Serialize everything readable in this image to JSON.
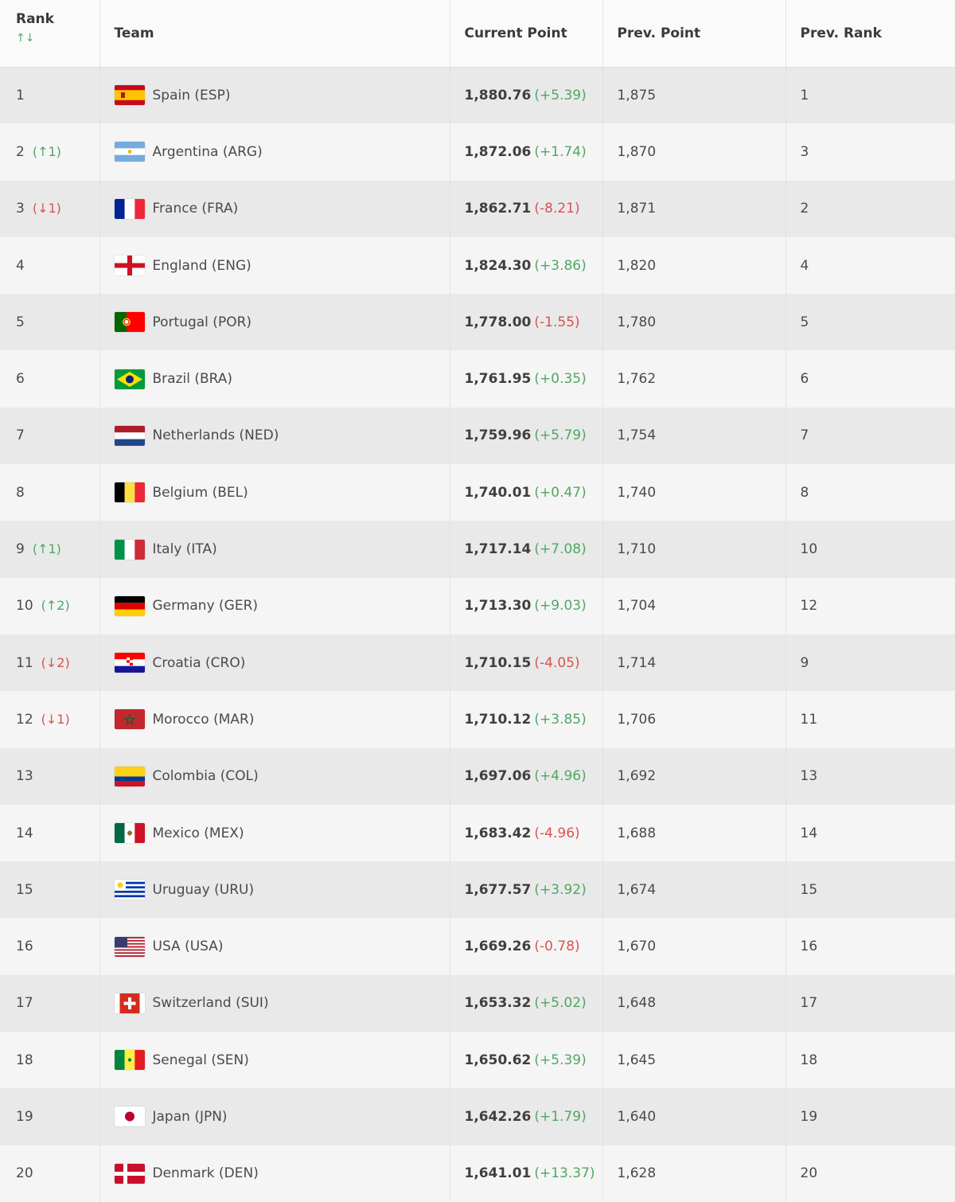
{
  "header": {
    "rank": "Rank",
    "sort_glyph": "↑↓",
    "team": "Team",
    "current_point": "Current Point",
    "prev_point": "Prev. Point",
    "prev_rank": "Prev. Rank"
  },
  "rows": [
    {
      "rank": "1",
      "move": "",
      "dir": "",
      "team": "Spain (ESP)",
      "flag": "esp",
      "current": "1,880.76",
      "delta": "(+5.39)",
      "sign": "pos",
      "prev_point": "1,875",
      "prev_rank": "1"
    },
    {
      "rank": "2",
      "move": "(↑1)",
      "dir": "up",
      "team": "Argentina (ARG)",
      "flag": "arg",
      "current": "1,872.06",
      "delta": "(+1.74)",
      "sign": "pos",
      "prev_point": "1,870",
      "prev_rank": "3"
    },
    {
      "rank": "3",
      "move": "(↓1)",
      "dir": "down",
      "team": "France (FRA)",
      "flag": "fra",
      "current": "1,862.71",
      "delta": "(-8.21)",
      "sign": "neg",
      "prev_point": "1,871",
      "prev_rank": "2"
    },
    {
      "rank": "4",
      "move": "",
      "dir": "",
      "team": "England (ENG)",
      "flag": "eng",
      "current": "1,824.30",
      "delta": "(+3.86)",
      "sign": "pos",
      "prev_point": "1,820",
      "prev_rank": "4"
    },
    {
      "rank": "5",
      "move": "",
      "dir": "",
      "team": "Portugal (POR)",
      "flag": "por",
      "current": "1,778.00",
      "delta": "(-1.55)",
      "sign": "neg",
      "prev_point": "1,780",
      "prev_rank": "5"
    },
    {
      "rank": "6",
      "move": "",
      "dir": "",
      "team": "Brazil (BRA)",
      "flag": "bra",
      "current": "1,761.95",
      "delta": "(+0.35)",
      "sign": "pos",
      "prev_point": "1,762",
      "prev_rank": "6"
    },
    {
      "rank": "7",
      "move": "",
      "dir": "",
      "team": "Netherlands (NED)",
      "flag": "ned",
      "current": "1,759.96",
      "delta": "(+5.79)",
      "sign": "pos",
      "prev_point": "1,754",
      "prev_rank": "7"
    },
    {
      "rank": "8",
      "move": "",
      "dir": "",
      "team": "Belgium (BEL)",
      "flag": "bel",
      "current": "1,740.01",
      "delta": "(+0.47)",
      "sign": "pos",
      "prev_point": "1,740",
      "prev_rank": "8"
    },
    {
      "rank": "9",
      "move": "(↑1)",
      "dir": "up",
      "team": "Italy (ITA)",
      "flag": "ita",
      "current": "1,717.14",
      "delta": "(+7.08)",
      "sign": "pos",
      "prev_point": "1,710",
      "prev_rank": "10"
    },
    {
      "rank": "10",
      "move": "(↑2)",
      "dir": "up",
      "team": "Germany (GER)",
      "flag": "ger",
      "current": "1,713.30",
      "delta": "(+9.03)",
      "sign": "pos",
      "prev_point": "1,704",
      "prev_rank": "12"
    },
    {
      "rank": "11",
      "move": "(↓2)",
      "dir": "down",
      "team": "Croatia (CRO)",
      "flag": "cro",
      "current": "1,710.15",
      "delta": "(-4.05)",
      "sign": "neg",
      "prev_point": "1,714",
      "prev_rank": "9"
    },
    {
      "rank": "12",
      "move": "(↓1)",
      "dir": "down",
      "team": "Morocco (MAR)",
      "flag": "mar",
      "current": "1,710.12",
      "delta": "(+3.85)",
      "sign": "pos",
      "prev_point": "1,706",
      "prev_rank": "11"
    },
    {
      "rank": "13",
      "move": "",
      "dir": "",
      "team": "Colombia (COL)",
      "flag": "col",
      "current": "1,697.06",
      "delta": "(+4.96)",
      "sign": "pos",
      "prev_point": "1,692",
      "prev_rank": "13"
    },
    {
      "rank": "14",
      "move": "",
      "dir": "",
      "team": "Mexico (MEX)",
      "flag": "mex",
      "current": "1,683.42",
      "delta": "(-4.96)",
      "sign": "neg",
      "prev_point": "1,688",
      "prev_rank": "14"
    },
    {
      "rank": "15",
      "move": "",
      "dir": "",
      "team": "Uruguay (URU)",
      "flag": "uru",
      "current": "1,677.57",
      "delta": "(+3.92)",
      "sign": "pos",
      "prev_point": "1,674",
      "prev_rank": "15"
    },
    {
      "rank": "16",
      "move": "",
      "dir": "",
      "team": "USA (USA)",
      "flag": "usa",
      "current": "1,669.26",
      "delta": "(-0.78)",
      "sign": "neg",
      "prev_point": "1,670",
      "prev_rank": "16"
    },
    {
      "rank": "17",
      "move": "",
      "dir": "",
      "team": "Switzerland (SUI)",
      "flag": "sui",
      "current": "1,653.32",
      "delta": "(+5.02)",
      "sign": "pos",
      "prev_point": "1,648",
      "prev_rank": "17"
    },
    {
      "rank": "18",
      "move": "",
      "dir": "",
      "team": "Senegal (SEN)",
      "flag": "sen",
      "current": "1,650.62",
      "delta": "(+5.39)",
      "sign": "pos",
      "prev_point": "1,645",
      "prev_rank": "18"
    },
    {
      "rank": "19",
      "move": "",
      "dir": "",
      "team": "Japan (JPN)",
      "flag": "jpn",
      "current": "1,642.26",
      "delta": "(+1.79)",
      "sign": "pos",
      "prev_point": "1,640",
      "prev_rank": "19"
    },
    {
      "rank": "20",
      "move": "",
      "dir": "",
      "team": "Denmark (DEN)",
      "flag": "den",
      "current": "1,641.01",
      "delta": "(+13.37)",
      "sign": "pos",
      "prev_point": "1,628",
      "prev_rank": "20"
    }
  ],
  "colors": {
    "up": "#4fa862",
    "down": "#d9534f",
    "row_odd": "#e9e9e9",
    "row_even": "#f5f5f5"
  }
}
